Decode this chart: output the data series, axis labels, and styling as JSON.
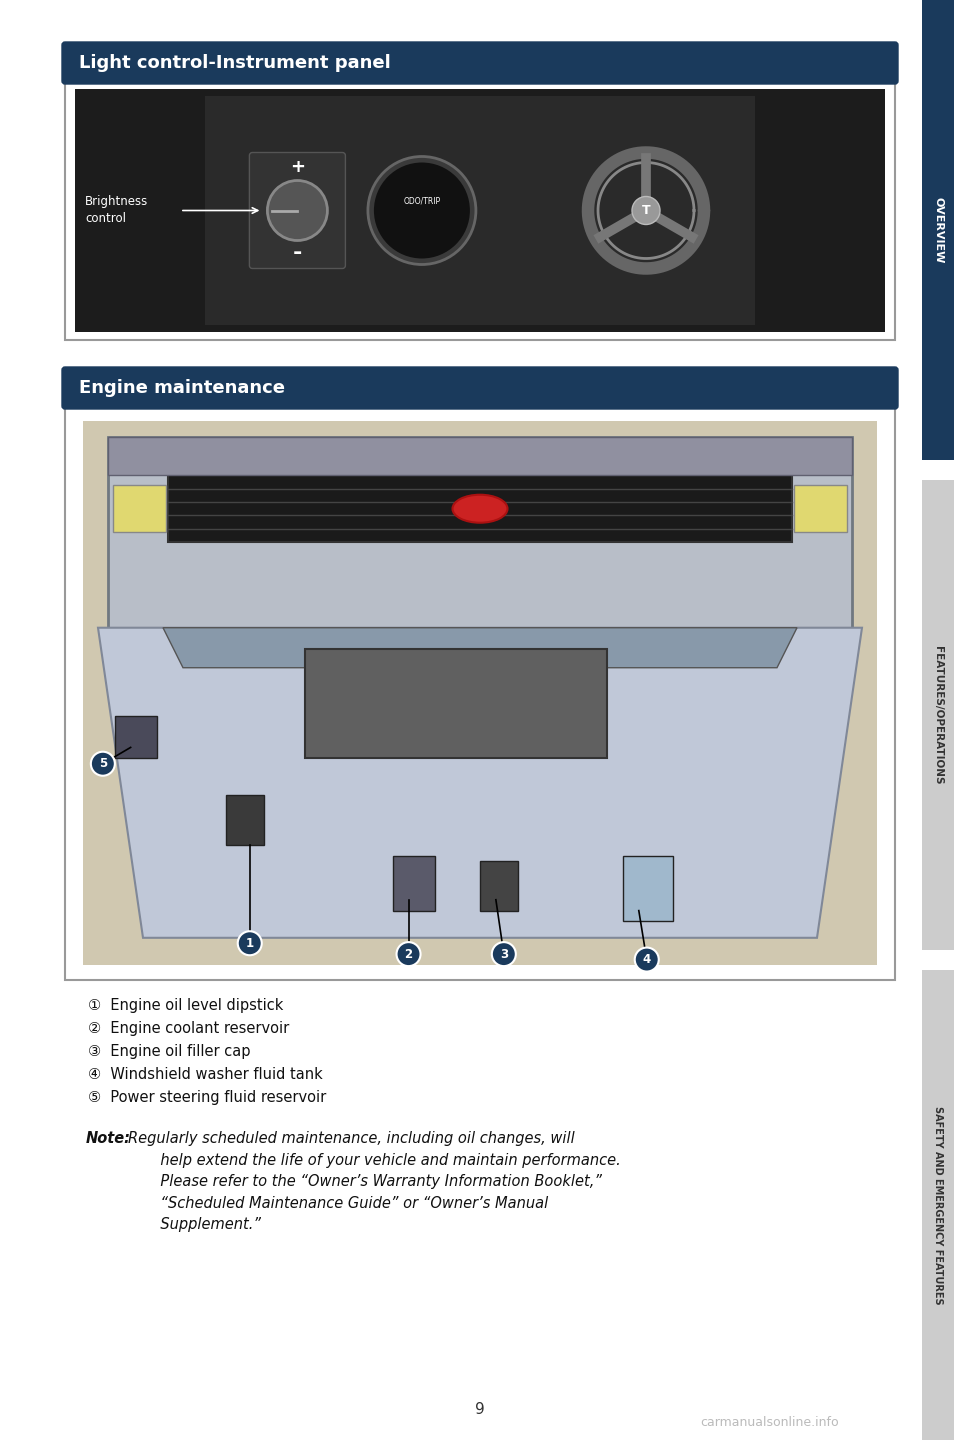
{
  "bg_color": "#ffffff",
  "dark_blue": "#1a3a5c",
  "sidebar_color": "#1e5f7a",
  "page_number": "9",
  "section1_title": "Light control-Instrument panel",
  "section2_title": "Engine maintenance",
  "sidebar_labels": [
    "OVERVIEW",
    "FEATURES/OPERATIONS",
    "SAFETY AND EMERGENCY FEATURES"
  ],
  "items": [
    "①  Engine oil level dipstick",
    "②  Engine coolant reservoir",
    "③  Engine oil filler cap",
    "④  Windshield washer fluid tank",
    "⑤  Power steering fluid reservoir"
  ],
  "note_label": "Note:",
  "note_text": "Regularly scheduled maintenance, including oil changes, will\n       help extend the life of your vehicle and maintain performance.\n       Please refer to the “Owner’s Warranty Information Booklet,”\n       “Scheduled Maintenance Guide” or “Owner’s Manual\n       Supplement.”",
  "watermark": "carmanualsonline.info",
  "title_font_size": 13,
  "body_font_size": 10.5,
  "note_font_size": 10.5
}
